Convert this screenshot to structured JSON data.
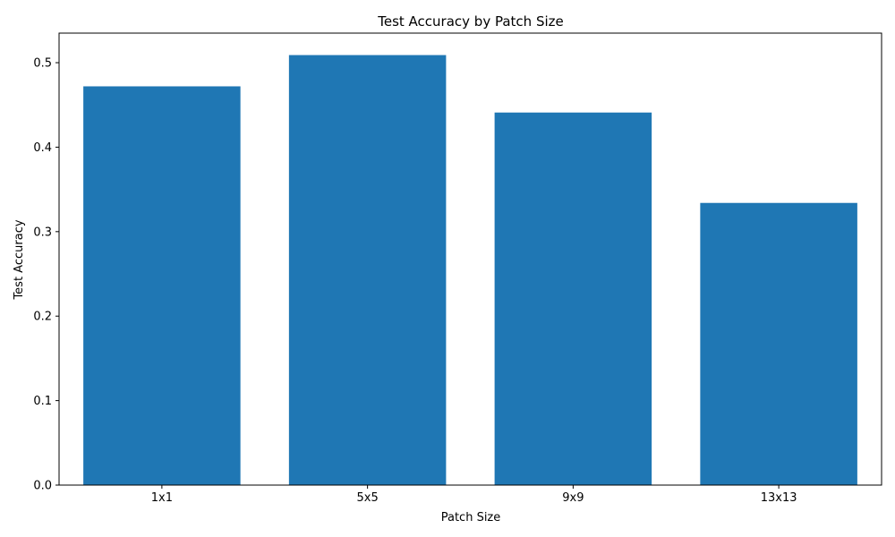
{
  "chart_data": {
    "type": "bar",
    "title": "Test Accuracy by Patch Size",
    "xlabel": "Patch Size",
    "ylabel": "Test Accuracy",
    "categories": [
      "1x1",
      "5x5",
      "9x9",
      "13x13"
    ],
    "values": [
      0.472,
      0.509,
      0.441,
      0.334
    ],
    "ylim": [
      0,
      0.535
    ],
    "yticks": [
      0.0,
      0.1,
      0.2,
      0.3,
      0.4,
      0.5
    ],
    "ytick_labels": [
      "0.0",
      "0.1",
      "0.2",
      "0.3",
      "0.4",
      "0.5"
    ],
    "bar_color": "#1f77b4",
    "grid": false,
    "legend": "none"
  }
}
